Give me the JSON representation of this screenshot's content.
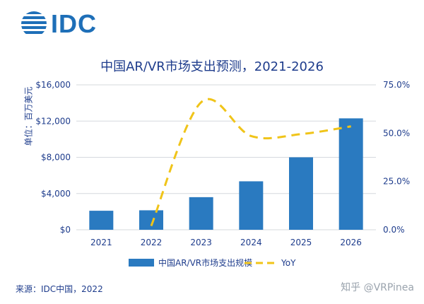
{
  "header": {
    "logo_text": "IDC",
    "logo_icon": "globe-stripes-icon"
  },
  "colors": {
    "bar": "#2a7ac0",
    "line": "#f0c419",
    "text": "#1e3c8c",
    "grid": "#d6d9de"
  },
  "chart_data": {
    "type": "bar",
    "title": "中国AR/VR市场支出预测，2021-2026",
    "ylabel": "单位：百万美元",
    "categories": [
      "2021",
      "2022",
      "2023",
      "2024",
      "2025",
      "2026"
    ],
    "ylim": [
      0,
      16000
    ],
    "yticks": [
      "$0",
      "$4,000",
      "$8,000",
      "$12,000",
      "$16,000"
    ],
    "y2lim": [
      0,
      75
    ],
    "y2ticks": [
      "0.0%",
      "25.0%",
      "50.0%",
      "75.0%"
    ],
    "grid": true,
    "legend_position": "bottom",
    "series": [
      {
        "name": "中国AR/VR市场支出规模",
        "type": "bar",
        "axis": "left",
        "values": [
          2100,
          2150,
          3600,
          5350,
          8000,
          12300
        ]
      },
      {
        "name": "YoY",
        "type": "line",
        "style": "dashed",
        "axis": "right",
        "values": [
          null,
          2.0,
          66.0,
          48.5,
          49.5,
          53.5
        ]
      }
    ]
  },
  "footer": {
    "source": "来源：IDC中国，2022",
    "watermark": "知乎 @VRPinea"
  }
}
